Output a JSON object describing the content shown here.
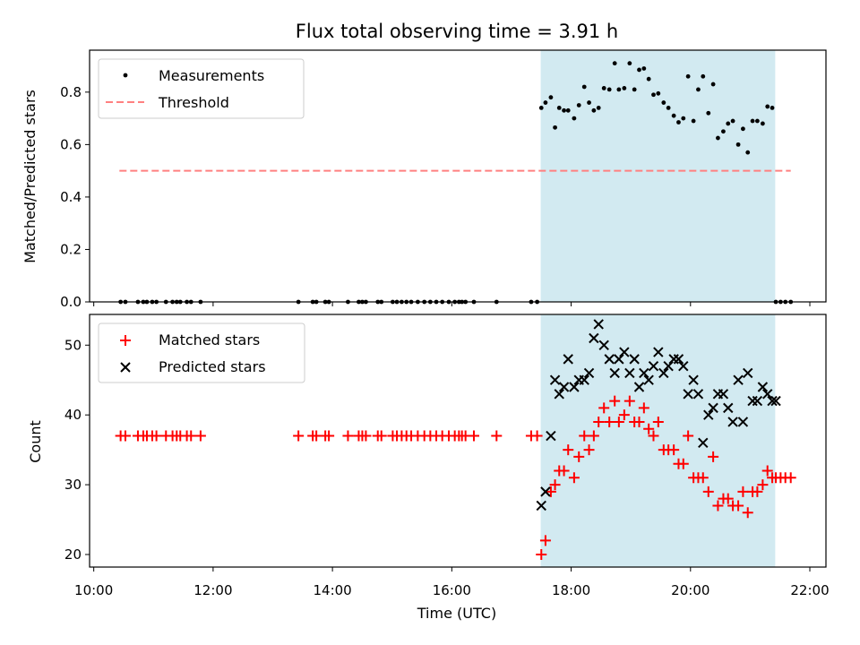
{
  "chart_data": {
    "title": "Flux total observing time = 3.91 h",
    "xlabel": "Time (UTC)",
    "x_unit": "hours UTC",
    "xlim": [
      9.93,
      22.27
    ],
    "x_ticks": [
      10,
      12,
      14,
      16,
      18,
      20,
      22
    ],
    "x_tick_labels": [
      "10:00",
      "12:00",
      "14:00",
      "16:00",
      "18:00",
      "20:00",
      "22:00"
    ],
    "shaded_span": {
      "x_start": 17.49,
      "x_end": 21.42,
      "color": "#add8e6"
    },
    "colors": {
      "measurements": "#000000",
      "threshold": "#ff8080",
      "matched": "#ff0000",
      "predicted": "#000000",
      "span": "#add8e6"
    },
    "panels": [
      {
        "id": "ratio",
        "type": "scatter",
        "ylabel": "Matched/Predicted stars",
        "ylim": [
          0,
          0.96
        ],
        "y_ticks": [
          0.0,
          0.2,
          0.4,
          0.6,
          0.8
        ],
        "y_tick_labels": [
          "0.0",
          "0.2",
          "0.4",
          "0.6",
          "0.8"
        ],
        "legend": [
          {
            "label": "Measurements",
            "marker": "dot"
          },
          {
            "label": "Threshold",
            "marker": "dashed-line"
          }
        ],
        "threshold": {
          "value": 0.5,
          "x_start": 10.43,
          "x_end": 21.68
        },
        "series": [
          {
            "name": "Measurements",
            "marker": "dot",
            "x": [
              10.45,
              10.53,
              10.74,
              10.83,
              10.89,
              10.98,
              11.05,
              11.21,
              11.32,
              11.39,
              11.45,
              11.56,
              11.63,
              11.79,
              13.43,
              13.67,
              13.73,
              13.88,
              13.94,
              14.26,
              14.44,
              14.5,
              14.56,
              14.76,
              14.82,
              15.01,
              15.08,
              15.16,
              15.24,
              15.32,
              15.43,
              15.54,
              15.64,
              15.74,
              15.84,
              15.95,
              16.05,
              16.12,
              16.17,
              16.23,
              16.37,
              16.75,
              17.33,
              17.43,
              17.5,
              17.57,
              17.66,
              17.73,
              17.8,
              17.88,
              17.95,
              18.05,
              18.13,
              18.22,
              18.3,
              18.38,
              18.46,
              18.55,
              18.64,
              18.73,
              18.8,
              18.89,
              18.98,
              19.06,
              19.14,
              19.22,
              19.3,
              19.38,
              19.46,
              19.55,
              19.63,
              19.72,
              19.8,
              19.88,
              19.96,
              20.05,
              20.13,
              20.21,
              20.3,
              20.38,
              20.46,
              20.55,
              20.63,
              20.71,
              20.8,
              20.88,
              20.96,
              21.04,
              21.12,
              21.21,
              21.29,
              21.37,
              21.43,
              21.51,
              21.59,
              21.68
            ],
            "y": [
              0,
              0,
              0,
              0,
              0,
              0,
              0,
              0,
              0,
              0,
              0,
              0,
              0,
              0,
              0,
              0,
              0,
              0,
              0,
              0,
              0,
              0,
              0,
              0,
              0,
              0,
              0,
              0,
              0,
              0,
              0,
              0,
              0,
              0,
              0,
              0,
              0,
              0,
              0,
              0,
              0,
              0,
              0,
              0,
              0.74,
              0.76,
              0.78,
              0.665,
              0.74,
              0.73,
              0.73,
              0.7,
              0.75,
              0.82,
              0.76,
              0.73,
              0.74,
              0.815,
              0.81,
              0.91,
              0.81,
              0.815,
              0.91,
              0.81,
              0.885,
              0.89,
              0.85,
              0.79,
              0.795,
              0.76,
              0.74,
              0.71,
              0.685,
              0.7,
              0.86,
              0.69,
              0.81,
              0.86,
              0.72,
              0.83,
              0.625,
              0.65,
              0.68,
              0.69,
              0.6,
              0.66,
              0.57,
              0.69,
              0.69,
              0.68,
              0.745,
              0.74,
              0,
              0,
              0,
              0
            ]
          }
        ]
      },
      {
        "id": "counts",
        "type": "scatter",
        "ylabel": "Count",
        "ylim": [
          18.2,
          54.4
        ],
        "y_ticks": [
          20,
          30,
          40,
          50
        ],
        "y_tick_labels": [
          "20",
          "30",
          "40",
          "50"
        ],
        "legend": [
          {
            "label": "Matched stars",
            "marker": "plus"
          },
          {
            "label": "Predicted stars",
            "marker": "cross"
          }
        ],
        "series": [
          {
            "name": "Matched stars",
            "marker": "plus",
            "x": [
              10.45,
              10.53,
              10.74,
              10.83,
              10.89,
              10.98,
              11.05,
              11.21,
              11.32,
              11.39,
              11.45,
              11.56,
              11.63,
              11.79,
              13.43,
              13.67,
              13.73,
              13.88,
              13.94,
              14.26,
              14.44,
              14.5,
              14.56,
              14.76,
              14.82,
              15.01,
              15.08,
              15.16,
              15.24,
              15.32,
              15.43,
              15.54,
              15.64,
              15.74,
              15.84,
              15.95,
              16.05,
              16.12,
              16.17,
              16.23,
              16.37,
              16.75,
              17.33,
              17.43,
              17.5,
              17.57,
              17.66,
              17.73,
              17.8,
              17.88,
              17.95,
              18.05,
              18.13,
              18.22,
              18.3,
              18.38,
              18.46,
              18.55,
              18.64,
              18.73,
              18.8,
              18.89,
              18.98,
              19.06,
              19.14,
              19.22,
              19.3,
              19.38,
              19.46,
              19.55,
              19.63,
              19.72,
              19.8,
              19.88,
              19.96,
              20.05,
              20.13,
              20.21,
              20.3,
              20.38,
              20.46,
              20.55,
              20.63,
              20.71,
              20.8,
              20.88,
              20.96,
              21.04,
              21.12,
              21.21,
              21.29,
              21.37,
              21.43,
              21.51,
              21.59,
              21.68
            ],
            "y": [
              37,
              37,
              37,
              37,
              37,
              37,
              37,
              37,
              37,
              37,
              37,
              37,
              37,
              37,
              37,
              37,
              37,
              37,
              37,
              37,
              37,
              37,
              37,
              37,
              37,
              37,
              37,
              37,
              37,
              37,
              37,
              37,
              37,
              37,
              37,
              37,
              37,
              37,
              37,
              37,
              37,
              37,
              37,
              37,
              20,
              22,
              29,
              30,
              32,
              32,
              35,
              31,
              34,
              37,
              35,
              37,
              39,
              41,
              39,
              42,
              39,
              40,
              42,
              39,
              39,
              41,
              38,
              37,
              39,
              35,
              35,
              35,
              33,
              33,
              37,
              31,
              31,
              31,
              29,
              34,
              27,
              28,
              28,
              27,
              27,
              29,
              26,
              29,
              29,
              30,
              32,
              31,
              31,
              31,
              31,
              31
            ]
          },
          {
            "name": "Predicted stars",
            "marker": "cross",
            "x": [
              17.5,
              17.57,
              17.66,
              17.73,
              17.8,
              17.88,
              17.95,
              18.05,
              18.13,
              18.22,
              18.3,
              18.38,
              18.46,
              18.55,
              18.64,
              18.73,
              18.8,
              18.89,
              18.98,
              19.06,
              19.14,
              19.22,
              19.3,
              19.38,
              19.46,
              19.55,
              19.63,
              19.72,
              19.8,
              19.88,
              19.96,
              20.05,
              20.13,
              20.21,
              20.3,
              20.38,
              20.46,
              20.55,
              20.63,
              20.71,
              20.8,
              20.88,
              20.96,
              21.04,
              21.12,
              21.21,
              21.29,
              21.37,
              21.43
            ],
            "y": [
              27,
              29,
              37,
              45,
              43,
              44,
              48,
              44,
              45,
              45,
              46,
              51,
              53,
              50,
              48,
              46,
              48,
              49,
              46,
              48,
              44,
              46,
              45,
              47,
              49,
              46,
              47,
              48,
              48,
              47,
              43,
              45,
              43,
              36,
              40,
              41,
              43,
              43,
              41,
              39,
              45,
              39,
              46,
              42,
              42,
              44,
              43,
              42,
              42
            ]
          }
        ]
      }
    ]
  }
}
